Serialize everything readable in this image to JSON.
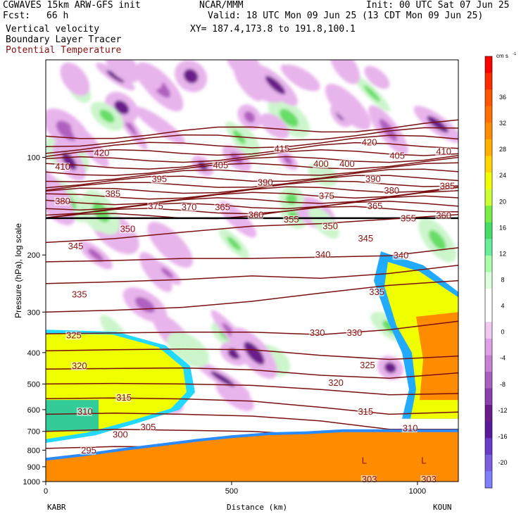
{
  "header": {
    "model": "CGWAVES 15km ARW-GFS init",
    "fcst_label": "Fcst:",
    "fcst_value": "66 h",
    "center": "NCAR/MMM",
    "init": "Init: 00 UTC Sat 07 Jun 25",
    "valid": "Valid: 18 UTC Mon 09 Jun 25 (13 CDT Mon 09 Jun 25)",
    "xy": "XY= 187.4,173.8 to 191.8,100.1",
    "field1": "Vertical velocity",
    "field2": "Boundary Layer Tracer",
    "field3": "Potential Temperature"
  },
  "colors": {
    "theta_line": "#7a0f0f",
    "theta_label": "#8b1010",
    "terrain": "#ff8c00",
    "tracer_yellow": "#f0ff00",
    "w_light_green": "#ccf5cc",
    "w_green": "#66dd66",
    "w_light_purple": "#e8b4ec",
    "w_purple": "#b060c0",
    "w_dark_purple": "#6a1a8a"
  },
  "chart_data": {
    "type": "contour-cross-section",
    "ylabel": "Pressure (hPa), log scale",
    "xlabel": "Distance (km)",
    "y_scale": "log",
    "y_ticks": [
      100,
      200,
      300,
      400,
      500,
      600,
      700,
      800,
      900,
      1000
    ],
    "x_ticks": [
      0,
      500,
      1000
    ],
    "xlim": [
      0,
      1110
    ],
    "ylim": [
      1000,
      50
    ],
    "start_station": "KABR",
    "end_station": "KOUN",
    "colorbar": {
      "unit": "cm s",
      "unit_exp": "-1",
      "labels": [
        36,
        32,
        28,
        24,
        20,
        16,
        12,
        8,
        4,
        0,
        -4,
        -8,
        -12,
        -16,
        -20
      ],
      "colors": [
        "#ff0000",
        "#ff2a00",
        "#ff5500",
        "#ff7000",
        "#ff8c00",
        "#ffb000",
        "#ffd400",
        "#f0ff00",
        "#ccff33",
        "#77ee44",
        "#44dd66",
        "#66ee99",
        "#aaffaa",
        "#ddffdd",
        "#ffffff",
        "#ffffff",
        "#f0c8f0",
        "#e0a0e6",
        "#c880d4",
        "#a860c0",
        "#8c40b0",
        "#6a1a8a",
        "#5a1aa0",
        "#6a3ac8",
        "#7a60e0",
        "#8080ff"
      ]
    },
    "theta_labels": [
      {
        "v": "420",
        "x": 130,
        "p": 98
      },
      {
        "v": "415",
        "x": 615,
        "p": 95
      },
      {
        "v": "420",
        "x": 850,
        "p": 91
      },
      {
        "v": "410",
        "x": 25,
        "p": 108
      },
      {
        "v": "405",
        "x": 450,
        "p": 107
      },
      {
        "v": "400",
        "x": 720,
        "p": 106
      },
      {
        "v": "400",
        "x": 790,
        "p": 106
      },
      {
        "v": "405",
        "x": 925,
        "p": 100
      },
      {
        "v": "410",
        "x": 1050,
        "p": 97
      },
      {
        "v": "395",
        "x": 285,
        "p": 118
      },
      {
        "v": "390",
        "x": 570,
        "p": 121
      },
      {
        "v": "390",
        "x": 860,
        "p": 118
      },
      {
        "v": "385",
        "x": 160,
        "p": 131
      },
      {
        "v": "385",
        "x": 1060,
        "p": 124
      },
      {
        "v": "380",
        "x": 910,
        "p": 128
      },
      {
        "v": "380",
        "x": 25,
        "p": 138
      },
      {
        "v": "375",
        "x": 275,
        "p": 143
      },
      {
        "v": "375",
        "x": 735,
        "p": 133
      },
      {
        "v": "370",
        "x": 365,
        "p": 144
      },
      {
        "v": "365",
        "x": 455,
        "p": 144
      },
      {
        "v": "365",
        "x": 865,
        "p": 143
      },
      {
        "v": "360",
        "x": 545,
        "p": 152
      },
      {
        "v": "355",
        "x": 640,
        "p": 157
      },
      {
        "v": "355",
        "x": 955,
        "p": 156
      },
      {
        "v": "360",
        "x": 1050,
        "p": 153
      },
      {
        "v": "350",
        "x": 200,
        "p": 168
      },
      {
        "v": "350",
        "x": 745,
        "p": 165
      },
      {
        "v": "345",
        "x": 60,
        "p": 190
      },
      {
        "v": "345",
        "x": 840,
        "p": 180
      },
      {
        "v": "340",
        "x": 725,
        "p": 202
      },
      {
        "v": "340",
        "x": 935,
        "p": 203
      },
      {
        "v": "335",
        "x": 70,
        "p": 268
      },
      {
        "v": "335",
        "x": 870,
        "p": 263
      },
      {
        "v": "330",
        "x": 710,
        "p": 352
      },
      {
        "v": "330",
        "x": 810,
        "p": 352
      },
      {
        "v": "325",
        "x": 55,
        "p": 358
      },
      {
        "v": "325",
        "x": 845,
        "p": 442
      },
      {
        "v": "320",
        "x": 70,
        "p": 445
      },
      {
        "v": "320",
        "x": 760,
        "p": 502
      },
      {
        "v": "315",
        "x": 190,
        "p": 557
      },
      {
        "v": "315",
        "x": 840,
        "p": 615
      },
      {
        "v": "310",
        "x": 85,
        "p": 615
      },
      {
        "v": "310",
        "x": 960,
        "p": 692
      },
      {
        "v": "305",
        "x": 255,
        "p": 688
      },
      {
        "v": "300",
        "x": 180,
        "p": 725
      },
      {
        "v": "295",
        "x": 95,
        "p": 810
      },
      {
        "v": "303",
        "x": 850,
        "p": 995
      },
      {
        "v": "303",
        "x": 1010,
        "p": 995
      }
    ],
    "low_markers": [
      {
        "v": "L",
        "x": 850,
        "p": 880
      },
      {
        "v": "L",
        "x": 1010,
        "p": 880
      }
    ],
    "theta_lines_upper": {
      "first_pressure": 86,
      "last_pressure": 155,
      "count": 17
    },
    "theta_lines_lower": [
      {
        "pressures": [
          183,
          178,
          170,
          163,
          160,
          155,
          150
        ]
      },
      {
        "pressures": [
          210,
          208,
          205,
          205,
          203,
          201,
          190
        ]
      },
      {
        "pressures": [
          245,
          242,
          238,
          232,
          236,
          228,
          215
        ]
      },
      {
        "pressures": [
          300,
          296,
          290,
          278,
          262,
          248,
          240
        ]
      },
      {
        "pressures": [
          350,
          348,
          346,
          346,
          352,
          340,
          320
        ]
      },
      {
        "pressures": [
          395,
          392,
          390,
          392,
          408,
          420,
          410
        ]
      },
      {
        "pressures": [
          450,
          448,
          446,
          452,
          470,
          480,
          462
        ]
      },
      {
        "pressures": [
          500,
          498,
          500,
          505,
          520,
          540,
          535
        ]
      },
      {
        "pressures": [
          555,
          552,
          556,
          565,
          590,
          620,
          610
        ]
      },
      {
        "pressures": [
          620,
          615,
          620,
          628,
          650,
          690,
          690
        ]
      },
      {
        "pressures": [
          700,
          690,
          695,
          700,
          720,
          760,
          770
        ]
      },
      {
        "pressures": [
          790,
          780,
          782,
          790,
          800,
          830,
          840
        ]
      }
    ]
  }
}
